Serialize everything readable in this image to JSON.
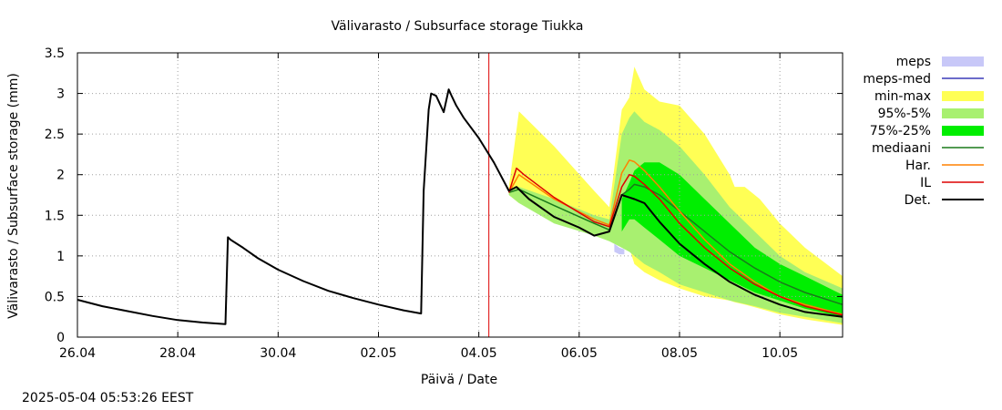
{
  "chart_data": {
    "type": "area",
    "title": "Välivarasto / Subsurface storage  Tiukka",
    "xlabel": "Päivä / Date",
    "ylabel": "Välivarasto / Subsurface storage (mm)",
    "x_unit": "days since 26.04",
    "xlim": [
      0,
      15.25
    ],
    "ylim": [
      0,
      3.5
    ],
    "y_ticks": [
      0,
      0.5,
      1,
      1.5,
      2,
      2.5,
      3,
      3.5
    ],
    "y_tick_labels": [
      "0",
      "0.5",
      "1",
      "1.5",
      "2",
      "2.5",
      "3",
      "3.5"
    ],
    "x_ticks": [
      0,
      2,
      4,
      6,
      8,
      10,
      12,
      14
    ],
    "x_tick_labels": [
      "26.04",
      "28.04",
      "30.04",
      "02.05",
      "04.05",
      "06.05",
      "08.05",
      "10.05"
    ],
    "forecast_start": 8.2,
    "legend_position": "right",
    "legend": [
      {
        "label": "meps",
        "kind": "band",
        "color": "#c8c8f8"
      },
      {
        "label": "meps-med",
        "kind": "line",
        "color": "#3a3ab8"
      },
      {
        "label": "min-max",
        "kind": "band",
        "color": "#ffff55"
      },
      {
        "label": "95%-5%",
        "kind": "band",
        "color": "#a8f070"
      },
      {
        "label": "75%-25%",
        "kind": "band",
        "color": "#00ee00"
      },
      {
        "label": "mediaani",
        "kind": "line",
        "color": "#1a7a1a"
      },
      {
        "label": "Har.",
        "kind": "line",
        "color": "#ff8000"
      },
      {
        "label": "IL",
        "kind": "line",
        "color": "#dd0000"
      },
      {
        "label": "Det.",
        "kind": "line",
        "color": "#000000"
      }
    ],
    "series": [
      {
        "name": "min-max",
        "color": "#ffff55",
        "x": [
          8.6,
          8.8,
          9.5,
          10.3,
          10.6,
          10.85,
          11.0,
          11.1,
          11.3,
          11.6,
          12.0,
          12.5,
          13.0,
          13.1,
          13.3,
          13.6,
          14.0,
          14.5,
          15.25
        ],
        "upper": [
          1.85,
          2.78,
          2.35,
          1.8,
          1.6,
          2.8,
          2.95,
          3.33,
          3.05,
          2.9,
          2.85,
          2.5,
          2.0,
          1.85,
          1.85,
          1.7,
          1.4,
          1.1,
          0.75
        ],
        "lower": [
          1.75,
          1.65,
          1.5,
          1.3,
          1.2,
          1.15,
          1.1,
          0.9,
          0.8,
          0.7,
          0.6,
          0.5,
          0.45,
          0.43,
          0.4,
          0.35,
          0.28,
          0.22,
          0.15
        ]
      },
      {
        "name": "95%-5%",
        "color": "#a8f070",
        "x": [
          8.6,
          8.8,
          9.5,
          10.3,
          10.6,
          10.85,
          11.0,
          11.1,
          11.3,
          11.6,
          12.0,
          12.5,
          13.0,
          13.5,
          14.0,
          14.5,
          15.25
        ],
        "upper": [
          1.8,
          1.85,
          1.7,
          1.5,
          1.45,
          2.5,
          2.7,
          2.78,
          2.65,
          2.55,
          2.35,
          2.0,
          1.6,
          1.3,
          1.0,
          0.8,
          0.6
        ],
        "lower": [
          1.75,
          1.65,
          1.4,
          1.25,
          1.18,
          1.1,
          1.05,
          1.0,
          0.9,
          0.8,
          0.65,
          0.55,
          0.45,
          0.38,
          0.3,
          0.25,
          0.17
        ]
      },
      {
        "name": "75%-25%",
        "color": "#00ee00",
        "x": [
          10.85,
          11.0,
          11.1,
          11.3,
          11.6,
          12.0,
          12.5,
          13.0,
          13.5,
          14.0,
          14.5,
          15.25
        ],
        "upper": [
          1.7,
          1.9,
          2.05,
          2.15,
          2.15,
          2.0,
          1.7,
          1.4,
          1.1,
          0.9,
          0.75,
          0.52
        ],
        "lower": [
          1.3,
          1.45,
          1.45,
          1.35,
          1.2,
          1.0,
          0.85,
          0.7,
          0.55,
          0.45,
          0.35,
          0.25
        ]
      },
      {
        "name": "meps",
        "color": "#c8c8f8",
        "x": [
          10.7,
          10.8,
          10.9
        ],
        "upper": [
          1.15,
          1.1,
          1.08
        ],
        "lower": [
          1.05,
          1.02,
          1.02
        ]
      },
      {
        "name": "mediaani",
        "color": "#1a7a1a",
        "x": [
          8.6,
          8.8,
          9.5,
          10.3,
          10.6,
          10.85,
          11.0,
          11.1,
          11.3,
          11.6,
          12.0,
          12.5,
          13.0,
          13.5,
          14.0,
          14.5,
          15.25
        ],
        "y": [
          1.78,
          1.82,
          1.62,
          1.4,
          1.32,
          1.75,
          1.82,
          1.88,
          1.85,
          1.75,
          1.55,
          1.3,
          1.05,
          0.85,
          0.68,
          0.55,
          0.4
        ]
      },
      {
        "name": "Har.",
        "color": "#ff8000",
        "x": [
          8.6,
          8.8,
          9.5,
          10.3,
          10.6,
          10.85,
          11.0,
          11.1,
          11.3,
          11.6,
          12.0,
          12.5,
          13.0,
          13.5,
          14.0,
          14.5,
          15.25
        ],
        "y": [
          1.78,
          2.0,
          1.7,
          1.45,
          1.38,
          2.02,
          2.18,
          2.16,
          2.05,
          1.85,
          1.55,
          1.2,
          0.9,
          0.68,
          0.5,
          0.4,
          0.28
        ]
      },
      {
        "name": "IL",
        "color": "#dd0000",
        "x": [
          8.6,
          8.75,
          8.9,
          9.5,
          10.3,
          10.6,
          10.85,
          11.0,
          11.1,
          11.3,
          11.6,
          12.0,
          12.5,
          13.0,
          13.5,
          14.0,
          14.5,
          15.25
        ],
        "y": [
          1.78,
          2.08,
          2.0,
          1.72,
          1.42,
          1.36,
          1.85,
          2.0,
          1.98,
          1.88,
          1.7,
          1.4,
          1.1,
          0.85,
          0.65,
          0.5,
          0.38,
          0.27
        ]
      },
      {
        "name": "Det.",
        "color": "#000000",
        "x": [
          0,
          0.5,
          1.0,
          1.5,
          2.0,
          2.5,
          2.95,
          3.0,
          3.05,
          3.3,
          3.6,
          4.0,
          4.5,
          5.0,
          5.5,
          6.0,
          6.5,
          6.85,
          6.9,
          7.0,
          7.05,
          7.15,
          7.3,
          7.4,
          7.45,
          7.55,
          7.7,
          8.0,
          8.3,
          8.6,
          8.75,
          9.0,
          9.5,
          10.0,
          10.3,
          10.6,
          10.85,
          11.0,
          11.1,
          11.3,
          11.6,
          12.0,
          12.5,
          13.0,
          13.5,
          14.0,
          14.5,
          15.25
        ],
        "y": [
          0.46,
          0.38,
          0.32,
          0.26,
          0.21,
          0.18,
          0.16,
          1.23,
          1.2,
          1.1,
          0.97,
          0.83,
          0.69,
          0.57,
          0.48,
          0.4,
          0.33,
          0.29,
          1.8,
          2.8,
          3.0,
          2.97,
          2.77,
          3.05,
          2.98,
          2.85,
          2.7,
          2.45,
          2.15,
          1.8,
          1.85,
          1.7,
          1.48,
          1.35,
          1.25,
          1.3,
          1.75,
          1.72,
          1.7,
          1.65,
          1.42,
          1.15,
          0.9,
          0.68,
          0.52,
          0.4,
          0.31,
          0.25
        ]
      }
    ]
  },
  "footer": {
    "timestamp": "2025-05-04  05:53:26 EEST"
  }
}
